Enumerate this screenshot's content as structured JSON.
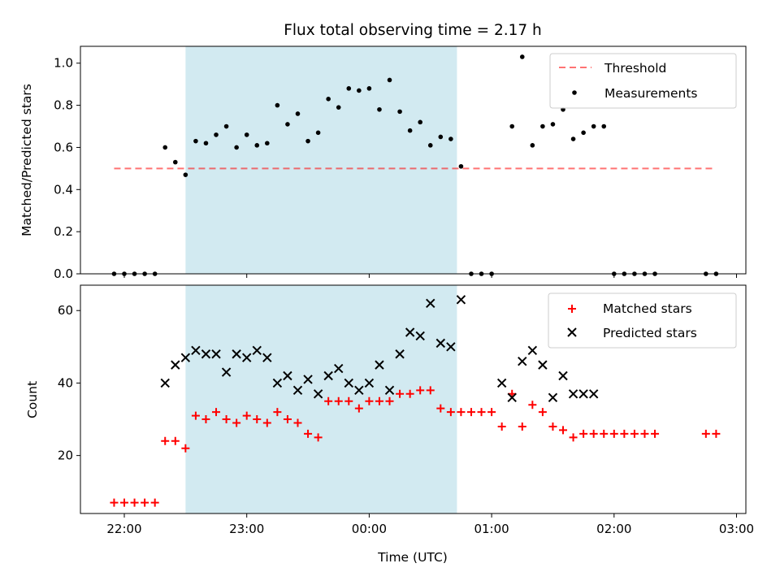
{
  "chart_data": {
    "type": "scatter",
    "title": "Flux total observing time = 2.17 h",
    "xlabel": "Time (UTC)",
    "x_ticks": [
      "22:00",
      "23:00",
      "00:00",
      "01:00",
      "02:00",
      "03:00"
    ],
    "observing_window": [
      "22:30",
      "00:43"
    ],
    "colors": {
      "shade": "#add8e6",
      "threshold": "#ff0000",
      "measurements": "#000000",
      "matched": "#ff0000",
      "predicted": "#000000"
    },
    "panels": [
      {
        "id": "ratio",
        "ylabel": "Matched/Predicted stars",
        "ylim": [
          0,
          1.08
        ],
        "yticks": [
          "0.0",
          "0.2",
          "0.4",
          "0.6",
          "0.8",
          "1.0"
        ],
        "legend_position": "top-right",
        "threshold": {
          "name": "Threshold",
          "value": 0.5,
          "x": [
            "21:55",
            "02:50"
          ]
        },
        "measurements": {
          "name": "Measurements",
          "x": [
            "21:55",
            "22:00",
            "22:05",
            "22:10",
            "22:15",
            "22:20",
            "22:25",
            "22:30",
            "22:35",
            "22:40",
            "22:45",
            "22:50",
            "22:55",
            "23:00",
            "23:05",
            "23:10",
            "23:15",
            "23:20",
            "23:25",
            "23:30",
            "23:35",
            "23:40",
            "23:45",
            "23:50",
            "23:55",
            "00:00",
            "00:05",
            "00:10",
            "00:15",
            "00:20",
            "00:25",
            "00:30",
            "00:35",
            "00:40",
            "00:45",
            "00:50",
            "00:55",
            "01:00",
            "01:05",
            "01:10",
            "01:15",
            "01:20",
            "01:25",
            "01:30",
            "01:35",
            "01:40",
            "01:45",
            "01:50",
            "01:55",
            "02:00",
            "02:05",
            "02:10",
            "02:15",
            "02:20",
            "02:25",
            "02:30",
            "02:35",
            "02:40",
            "02:45",
            "02:50"
          ],
          "y": [
            0,
            0,
            0,
            0,
            0,
            0.6,
            0.53,
            0.47,
            0.63,
            0.62,
            0.66,
            0.7,
            0.6,
            0.66,
            0.61,
            0.62,
            0.8,
            0.71,
            0.76,
            0.63,
            0.67,
            0.83,
            0.79,
            0.88,
            0.87,
            0.88,
            0.78,
            0.92,
            0.77,
            0.68,
            0.72,
            0.61,
            0.65,
            0.64,
            0.51,
            0,
            0,
            0,
            null,
            0.7,
            1.03,
            0.61,
            0.7,
            0.71,
            0.78,
            0.64,
            0.67,
            0.7,
            0.7,
            0,
            0,
            0,
            0,
            0,
            null,
            null,
            null,
            null,
            0,
            0
          ]
        }
      },
      {
        "id": "count",
        "ylabel": "Count",
        "ylim": [
          4,
          67
        ],
        "yticks": [
          "20",
          "40",
          "60"
        ],
        "legend_position": "top-right",
        "matched": {
          "name": "Matched stars",
          "x": [
            "21:55",
            "22:00",
            "22:05",
            "22:10",
            "22:15",
            "22:20",
            "22:25",
            "22:30",
            "22:35",
            "22:40",
            "22:45",
            "22:50",
            "22:55",
            "23:00",
            "23:05",
            "23:10",
            "23:15",
            "23:20",
            "23:25",
            "23:30",
            "23:35",
            "23:40",
            "23:45",
            "23:50",
            "23:55",
            "00:00",
            "00:05",
            "00:10",
            "00:15",
            "00:20",
            "00:25",
            "00:30",
            "00:35",
            "00:40",
            "00:45",
            "00:50",
            "00:55",
            "01:00",
            "01:05",
            "01:10",
            "01:15",
            "01:20",
            "01:25",
            "01:30",
            "01:35",
            "01:40",
            "01:45",
            "01:50",
            "01:55",
            "02:00",
            "02:05",
            "02:10",
            "02:15",
            "02:20",
            "02:45",
            "02:50"
          ],
          "y": [
            7,
            7,
            7,
            7,
            7,
            24,
            24,
            22,
            31,
            30,
            32,
            30,
            29,
            31,
            30,
            29,
            32,
            30,
            29,
            26,
            25,
            35,
            35,
            35,
            33,
            35,
            35,
            35,
            37,
            37,
            38,
            38,
            33,
            32,
            32,
            32,
            32,
            32,
            28,
            37,
            28,
            34,
            32,
            28,
            27,
            25,
            26,
            26,
            26,
            26,
            26,
            26,
            26,
            26,
            26,
            26
          ]
        },
        "predicted": {
          "name": "Predicted stars",
          "x": [
            "22:20",
            "22:25",
            "22:30",
            "22:35",
            "22:40",
            "22:45",
            "22:50",
            "22:55",
            "23:00",
            "23:05",
            "23:10",
            "23:15",
            "23:20",
            "23:25",
            "23:30",
            "23:35",
            "23:40",
            "23:45",
            "23:50",
            "23:55",
            "00:00",
            "00:05",
            "00:10",
            "00:15",
            "00:20",
            "00:25",
            "00:30",
            "00:35",
            "00:40",
            "00:45",
            "01:05",
            "01:10",
            "01:15",
            "01:20",
            "01:25",
            "01:30",
            "01:35",
            "01:40",
            "01:45",
            "01:50"
          ],
          "y": [
            40,
            45,
            47,
            49,
            48,
            48,
            43,
            48,
            47,
            49,
            47,
            40,
            42,
            38,
            41,
            37,
            42,
            44,
            40,
            38,
            40,
            45,
            38,
            48,
            54,
            53,
            62,
            51,
            50,
            63,
            40,
            36,
            46,
            49,
            45,
            36,
            42,
            37,
            37,
            37
          ]
        }
      }
    ]
  }
}
